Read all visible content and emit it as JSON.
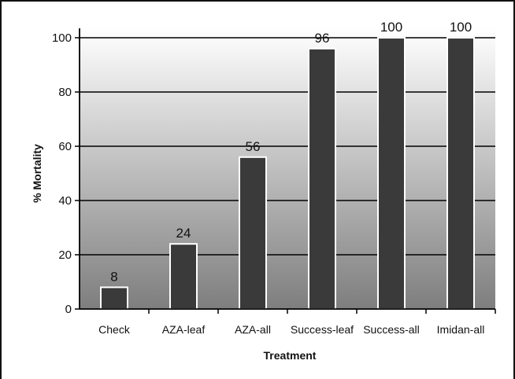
{
  "chart_data": {
    "type": "bar",
    "title": "",
    "xlabel": "Treatment",
    "ylabel": "% Mortality",
    "categories": [
      "Check",
      "AZA-leaf",
      "AZA-all",
      "Success-leaf",
      "Success-all",
      "Imidan-all"
    ],
    "values": [
      8,
      24,
      56,
      96,
      100,
      100
    ],
    "data_labels": [
      "8",
      "24",
      "56",
      "96",
      "100",
      "100"
    ],
    "ylim": [
      0,
      100
    ],
    "yticks": [
      0,
      20,
      40,
      60,
      80,
      100
    ],
    "ytick_labels": [
      "0",
      "20",
      "40",
      "60",
      "80",
      "100"
    ],
    "grid": "horizontal",
    "legend": "none",
    "colors": {
      "bar_fill": "#3a3a3a",
      "bar_edge": "#ffffff",
      "gridline": "#000000",
      "background_top": "#ffffff",
      "background_bottom": "#7e7e7e"
    }
  }
}
